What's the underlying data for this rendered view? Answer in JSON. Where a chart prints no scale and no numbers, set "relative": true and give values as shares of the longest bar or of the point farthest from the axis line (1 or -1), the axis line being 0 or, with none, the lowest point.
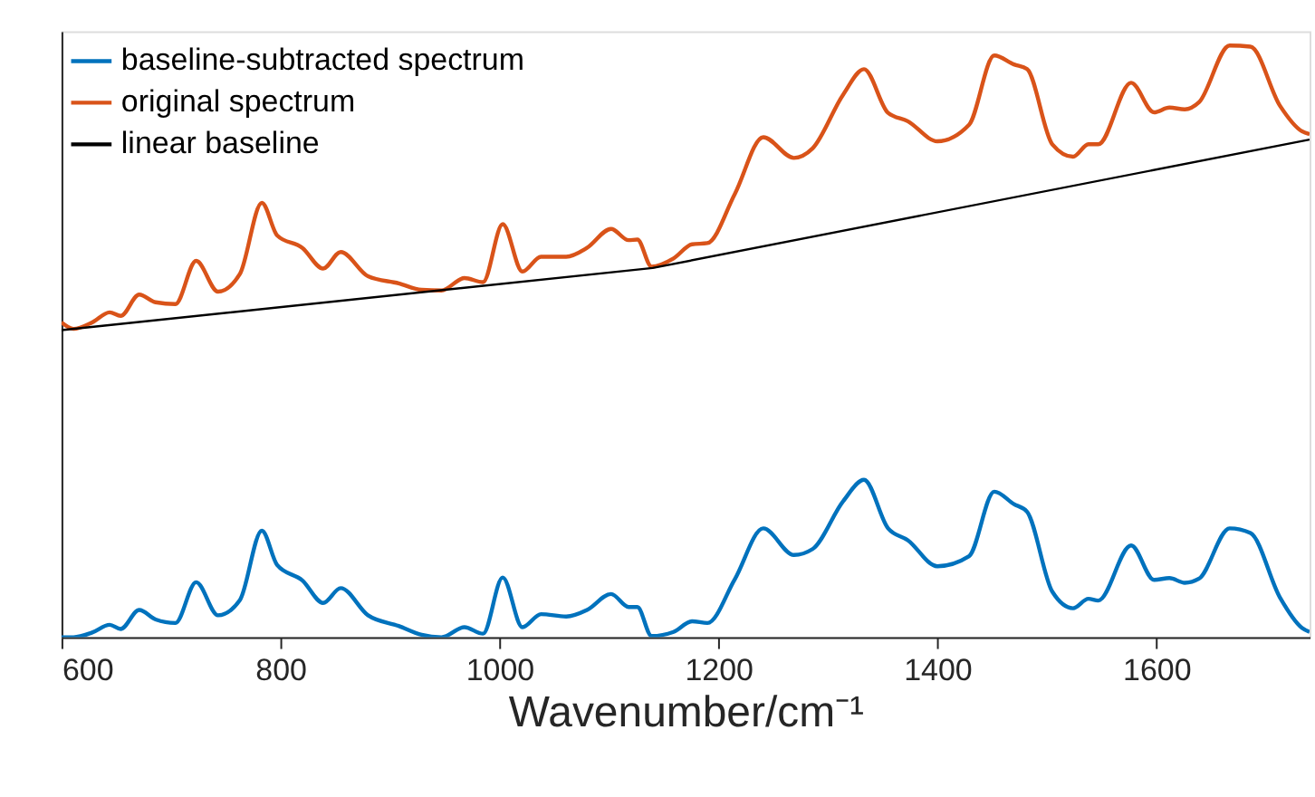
{
  "chart_data": {
    "type": "line",
    "relative": true,
    "xlabel": "Wavenumber/cm⁻¹",
    "x": [
      600,
      611,
      628,
      644,
      654,
      671,
      686,
      704,
      723,
      743,
      763,
      783,
      797,
      820,
      839,
      855,
      880,
      908,
      929,
      947,
      968,
      985,
      1003,
      1021,
      1038,
      1061,
      1080,
      1102,
      1118,
      1126,
      1139,
      1159,
      1176,
      1190,
      1215,
      1241,
      1269,
      1286,
      1314,
      1333,
      1355,
      1373,
      1400,
      1429,
      1452,
      1470,
      1482,
      1505,
      1524,
      1538,
      1547,
      1577,
      1598,
      1612,
      1626,
      1639,
      1667,
      1686,
      1713,
      1733,
      1740
    ],
    "xlim": [
      600,
      1740
    ],
    "xticks": [
      600,
      800,
      1000,
      1200,
      1400,
      1600
    ],
    "tick_labels": "x",
    "grid": false,
    "legend": "top left",
    "line_style": "solid",
    "series": [
      {
        "name": "baseline-subtracted spectrum",
        "color": "#0072bd",
        "values": [
          0,
          0,
          0.008,
          0.021,
          0.014,
          0.046,
          0.03,
          0.024,
          0.093,
          0.037,
          0.063,
          0.18,
          0.122,
          0.096,
          0.058,
          0.083,
          0.037,
          0.019,
          0.004,
          0,
          0.017,
          0.006,
          0.101,
          0.017,
          0.039,
          0.035,
          0.046,
          0.073,
          0.051,
          0.051,
          0.002,
          0.009,
          0.027,
          0.024,
          0.098,
          0.184,
          0.139,
          0.149,
          0.23,
          0.266,
          0.184,
          0.164,
          0.12,
          0.137,
          0.246,
          0.225,
          0.212,
          0.077,
          0.049,
          0.065,
          0.062,
          0.155,
          0.097,
          0.1,
          0.092,
          0.099,
          0.184,
          0.176,
          0.067,
          0.016,
          0.009
        ]
      },
      {
        "name": "original spectrum",
        "color": "#d95319",
        "values": [
          0.532,
          0.521,
          0.532,
          0.549,
          0.543,
          0.579,
          0.566,
          0.563,
          0.636,
          0.584,
          0.614,
          0.734,
          0.679,
          0.658,
          0.623,
          0.651,
          0.61,
          0.598,
          0.587,
          0.586,
          0.607,
          0.6,
          0.698,
          0.618,
          0.643,
          0.643,
          0.658,
          0.69,
          0.671,
          0.672,
          0.626,
          0.64,
          0.664,
          0.666,
          0.749,
          0.845,
          0.81,
          0.826,
          0.917,
          0.96,
          0.886,
          0.872,
          0.838,
          0.866,
          0.983,
          0.968,
          0.96,
          0.833,
          0.812,
          0.833,
          0.833,
          0.937,
          0.887,
          0.895,
          0.892,
          0.904,
          1.0,
          0.998,
          0.898,
          0.855,
          0.85
        ]
      },
      {
        "name": "linear baseline",
        "color": "#000000",
        "x": [
          600,
          1140,
          1740
        ],
        "values": [
          0.519,
          0.624,
          0.841
        ]
      }
    ]
  }
}
